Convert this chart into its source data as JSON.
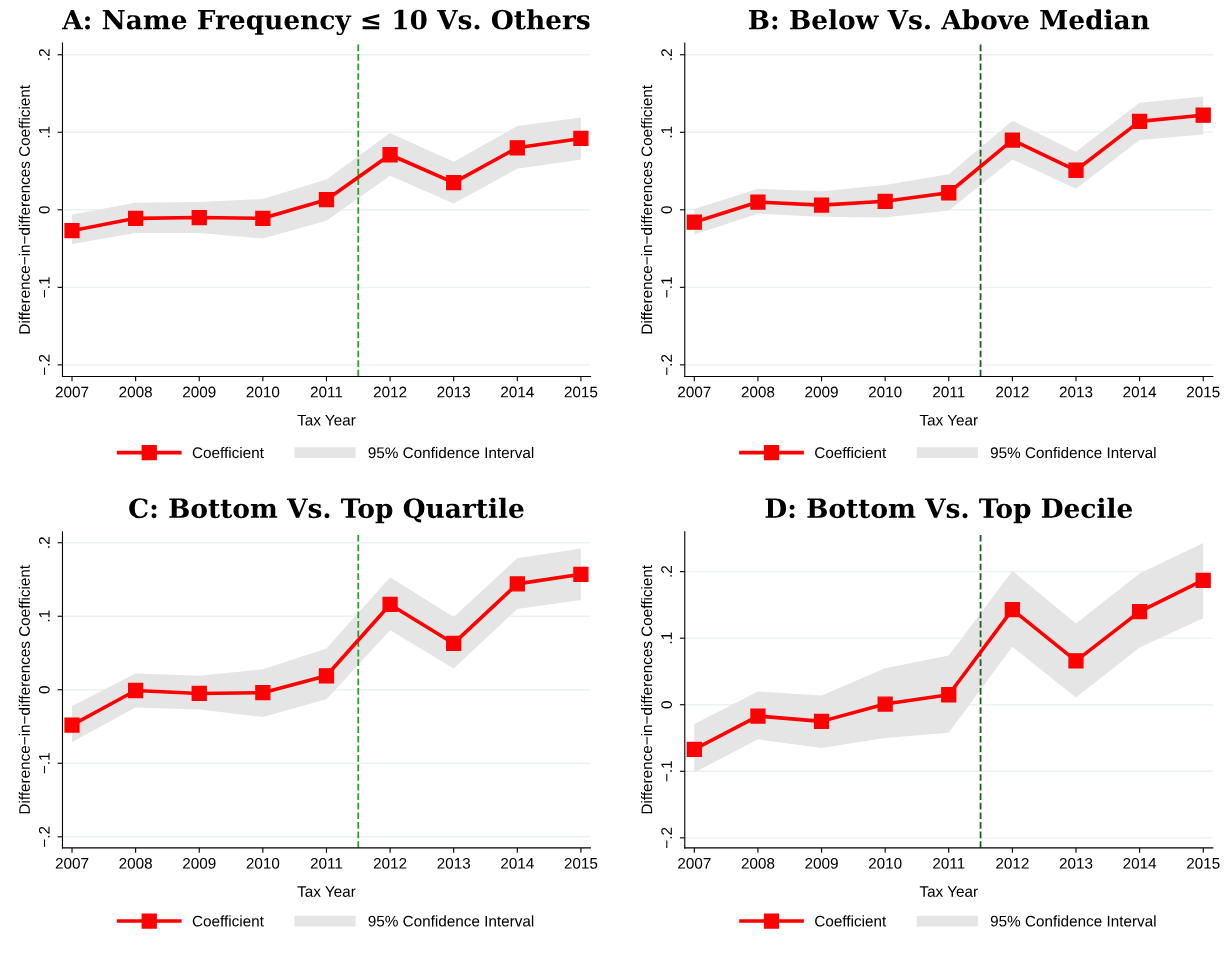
{
  "chart_data": [
    {
      "type": "line",
      "title": "A: Name Frequency ≤ 10 Vs. Others",
      "xlabel": "Tax Year",
      "ylabel": "Difference−in−differences Coefficient",
      "x": [
        2007,
        2008,
        2009,
        2010,
        2011,
        2012,
        2013,
        2014,
        2015
      ],
      "xlim": [
        2006.85,
        2015.15
      ],
      "xticks": [
        2007,
        2008,
        2009,
        2010,
        2011,
        2012,
        2013,
        2014,
        2015
      ],
      "ylim": [
        -0.215,
        0.215
      ],
      "yticks": [
        {
          "value": -0.2,
          "label": "−.2"
        },
        {
          "value": -0.1,
          "label": "−.1"
        },
        0,
        {
          "value": 0.1,
          "label": ".1"
        },
        {
          "value": 0.2,
          "label": ".2"
        }
      ],
      "grid": "y",
      "legend": "bottom",
      "marker": "square",
      "line_style": "solid",
      "annotations": [
        "95% Confidence Interval"
      ],
      "series": [
        {
          "name": "Coefficient",
          "color": "#ff0000",
          "values": [
            -0.027,
            -0.011,
            -0.01,
            -0.011,
            0.013,
            0.071,
            0.035,
            0.08,
            0.092
          ],
          "lower": [
            -0.044,
            -0.03,
            -0.03,
            -0.037,
            -0.014,
            0.044,
            0.008,
            0.053,
            0.065
          ],
          "upper": [
            -0.006,
            0.009,
            0.01,
            0.014,
            0.039,
            0.099,
            0.062,
            0.108,
            0.119
          ]
        }
      ],
      "ref_lines": [
        {
          "axis": "x",
          "value": 2011.5,
          "color": "#2ca02c",
          "line_style": "dashed"
        }
      ]
    },
    {
      "type": "line",
      "title": "B: Below Vs. Above Median",
      "xlabel": "Tax Year",
      "ylabel": "Difference−in−differences Coefficient",
      "x": [
        2007,
        2008,
        2009,
        2010,
        2011,
        2012,
        2013,
        2014,
        2015
      ],
      "xlim": [
        2006.85,
        2015.15
      ],
      "xticks": [
        2007,
        2008,
        2009,
        2010,
        2011,
        2012,
        2013,
        2014,
        2015
      ],
      "ylim": [
        -0.215,
        0.215
      ],
      "yticks": [
        {
          "value": -0.2,
          "label": "−.2"
        },
        {
          "value": -0.1,
          "label": "−.1"
        },
        0,
        {
          "value": 0.1,
          "label": ".1"
        },
        {
          "value": 0.2,
          "label": ".2"
        }
      ],
      "grid": "y",
      "legend": "bottom",
      "marker": "square",
      "line_style": "solid",
      "annotations": [
        "95% Confidence Interval"
      ],
      "series": [
        {
          "name": "Coefficient",
          "color": "#ff0000",
          "values": [
            -0.016,
            0.01,
            0.006,
            0.011,
            0.022,
            0.09,
            0.051,
            0.114,
            0.122
          ],
          "lower": [
            -0.032,
            -0.005,
            -0.009,
            -0.01,
            -0.001,
            0.065,
            0.027,
            0.09,
            0.097
          ],
          "upper": [
            0.001,
            0.027,
            0.024,
            0.032,
            0.046,
            0.115,
            0.075,
            0.138,
            0.146
          ]
        }
      ],
      "ref_lines": [
        {
          "axis": "x",
          "value": 2011.5,
          "color": "#1f5f1f",
          "line_style": "dashed"
        }
      ]
    },
    {
      "type": "line",
      "title": "C: Bottom Vs. Top Quartile",
      "xlabel": "Tax Year",
      "ylabel": "Difference−in−differences Coefficient",
      "x": [
        2007,
        2008,
        2009,
        2010,
        2011,
        2012,
        2013,
        2014,
        2015
      ],
      "xlim": [
        2006.85,
        2015.15
      ],
      "xticks": [
        2007,
        2008,
        2009,
        2010,
        2011,
        2012,
        2013,
        2014,
        2015
      ],
      "ylim": [
        -0.215,
        0.215
      ],
      "yticks": [
        {
          "value": -0.2,
          "label": "−.2"
        },
        {
          "value": -0.1,
          "label": "−.1"
        },
        0,
        {
          "value": 0.1,
          "label": ".1"
        },
        {
          "value": 0.2,
          "label": ".2"
        }
      ],
      "grid": "y",
      "legend": "bottom",
      "marker": "square",
      "line_style": "solid",
      "annotations": [
        "95% Confidence Interval"
      ],
      "series": [
        {
          "name": "Coefficient",
          "color": "#ff0000",
          "values": [
            -0.048,
            -0.001,
            -0.005,
            -0.004,
            0.019,
            0.116,
            0.063,
            0.144,
            0.157
          ],
          "lower": [
            -0.071,
            -0.024,
            -0.027,
            -0.037,
            -0.013,
            0.081,
            0.029,
            0.11,
            0.122
          ],
          "upper": [
            -0.022,
            0.022,
            0.019,
            0.028,
            0.056,
            0.153,
            0.099,
            0.179,
            0.192
          ]
        }
      ],
      "ref_lines": [
        {
          "axis": "x",
          "value": 2011.5,
          "color": "#2ca02c",
          "line_style": "dashed"
        }
      ]
    },
    {
      "type": "line",
      "title": "D: Bottom Vs. Top Decile",
      "xlabel": "Tax Year",
      "ylabel": "Difference−in−differences Coefficient",
      "x": [
        2007,
        2008,
        2009,
        2010,
        2011,
        2012,
        2013,
        2014,
        2015
      ],
      "xlim": [
        2006.85,
        2015.15
      ],
      "xticks": [
        2007,
        2008,
        2009,
        2010,
        2011,
        2012,
        2013,
        2014,
        2015
      ],
      "ylim": [
        -0.215,
        0.26
      ],
      "yticks": [
        {
          "value": -0.2,
          "label": "−.2"
        },
        {
          "value": -0.1,
          "label": "−.1"
        },
        0,
        {
          "value": 0.1,
          "label": ".1"
        },
        {
          "value": 0.2,
          "label": ".2"
        }
      ],
      "grid": "y",
      "legend": "bottom",
      "marker": "square",
      "line_style": "solid",
      "annotations": [
        "95% Confidence Interval"
      ],
      "series": [
        {
          "name": "Coefficient",
          "color": "#ff0000",
          "values": [
            -0.067,
            -0.017,
            -0.025,
            0.001,
            0.015,
            0.143,
            0.066,
            0.14,
            0.187
          ],
          "lower": [
            -0.102,
            -0.052,
            -0.065,
            -0.05,
            -0.042,
            0.087,
            0.011,
            0.086,
            0.13
          ],
          "upper": [
            -0.029,
            0.02,
            0.014,
            0.055,
            0.074,
            0.201,
            0.122,
            0.197,
            0.243
          ]
        }
      ],
      "ref_lines": [
        {
          "axis": "x",
          "value": 2011.5,
          "color": "#1f5f1f",
          "line_style": "dashed"
        }
      ]
    }
  ]
}
